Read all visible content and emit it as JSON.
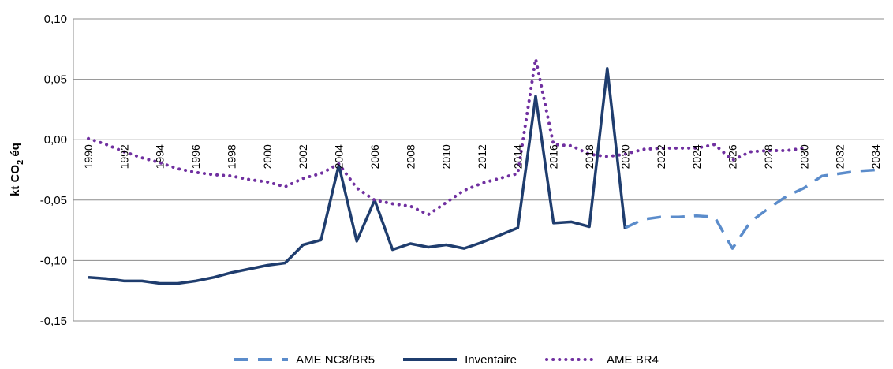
{
  "chart_data": {
    "type": "line",
    "ylabel_main": "kt  CO",
    "ylabel_sub": "2",
    "ylabel_tail": " éq",
    "xlabel": "",
    "ylim": [
      -0.15,
      0.1
    ],
    "yticks": [
      "0,10",
      "0,05",
      "0,00",
      "-0,05",
      "-0,10",
      "-0,15"
    ],
    "ytick_values": [
      0.1,
      0.05,
      0.0,
      -0.05,
      -0.1,
      -0.15
    ],
    "x_range": [
      1990,
      2034
    ],
    "xticks": [
      "1990",
      "1992",
      "1994",
      "1996",
      "1998",
      "2000",
      "2002",
      "2004",
      "2006",
      "2008",
      "2010",
      "2012",
      "2014",
      "2016",
      "2018",
      "2020",
      "2022",
      "2024",
      "2026",
      "2028",
      "2030",
      "2032",
      "2034"
    ],
    "legend_position": "bottom",
    "grid": "horizontal",
    "series": [
      {
        "name": "AME NC8/BR5",
        "style": "dashed",
        "color": "#5b8ccb",
        "x": [
          2020,
          2021,
          2022,
          2023,
          2024,
          2025,
          2026,
          2027,
          2028,
          2029,
          2030,
          2031,
          2032,
          2033,
          2034
        ],
        "y": [
          -0.073,
          -0.066,
          -0.064,
          -0.064,
          -0.063,
          -0.064,
          -0.09,
          -0.068,
          -0.057,
          -0.047,
          -0.04,
          -0.03,
          -0.028,
          -0.026,
          -0.025
        ]
      },
      {
        "name": "Inventaire",
        "style": "solid",
        "color": "#1f3d6e",
        "x": [
          1990,
          1991,
          1992,
          1993,
          1994,
          1995,
          1996,
          1997,
          1998,
          1999,
          2000,
          2001,
          2002,
          2003,
          2004,
          2005,
          2006,
          2007,
          2008,
          2009,
          2010,
          2011,
          2012,
          2013,
          2014,
          2015,
          2016,
          2017,
          2018,
          2019,
          2020
        ],
        "y": [
          -0.114,
          -0.115,
          -0.117,
          -0.117,
          -0.119,
          -0.119,
          -0.117,
          -0.114,
          -0.11,
          -0.107,
          -0.104,
          -0.102,
          -0.087,
          -0.083,
          -0.021,
          -0.084,
          -0.05,
          -0.091,
          -0.086,
          -0.089,
          -0.087,
          -0.09,
          -0.085,
          -0.079,
          -0.073,
          0.036,
          -0.069,
          -0.068,
          -0.072,
          0.059,
          -0.074
        ]
      },
      {
        "name": "AME BR4",
        "style": "dotted",
        "color": "#7030a0",
        "x": [
          1990,
          1991,
          1992,
          1993,
          1994,
          1995,
          1996,
          1997,
          1998,
          1999,
          2000,
          2001,
          2002,
          2003,
          2004,
          2005,
          2006,
          2007,
          2008,
          2009,
          2010,
          2011,
          2012,
          2013,
          2014,
          2015,
          2016,
          2017,
          2018,
          2019,
          2020,
          2021,
          2022,
          2023,
          2024,
          2025,
          2026,
          2027,
          2028,
          2029,
          2030
        ],
        "y": [
          0.001,
          -0.004,
          -0.01,
          -0.015,
          -0.019,
          -0.024,
          -0.027,
          -0.029,
          -0.03,
          -0.033,
          -0.035,
          -0.039,
          -0.032,
          -0.028,
          -0.02,
          -0.04,
          -0.05,
          -0.053,
          -0.055,
          -0.062,
          -0.052,
          -0.042,
          -0.036,
          -0.032,
          -0.028,
          0.067,
          -0.004,
          -0.005,
          -0.012,
          -0.014,
          -0.012,
          -0.008,
          -0.007,
          -0.007,
          -0.007,
          -0.004,
          -0.017,
          -0.01,
          -0.009,
          -0.009,
          -0.007
        ]
      }
    ]
  }
}
